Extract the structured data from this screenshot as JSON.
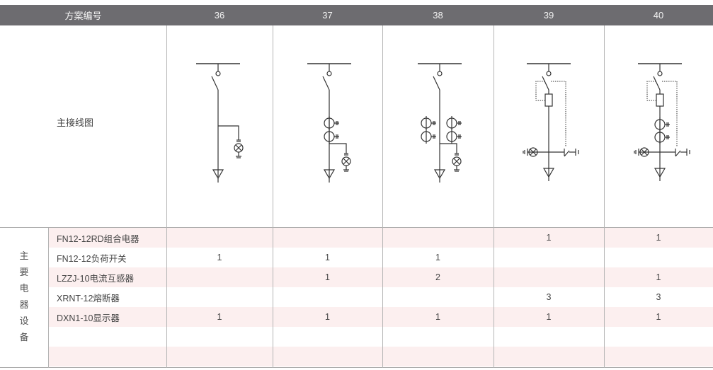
{
  "header": {
    "label": "方案编号",
    "schemes": [
      "36",
      "37",
      "38",
      "39",
      "40"
    ]
  },
  "diagram_row_label": "主接线图",
  "equipment_group_label": "主要电器设备",
  "equipment": [
    {
      "name": "FN12-12RD组合电器",
      "values": [
        "",
        "",
        "",
        "1",
        "1"
      ]
    },
    {
      "name": "FN12-12负荷开关",
      "values": [
        "1",
        "1",
        "1",
        "",
        ""
      ]
    },
    {
      "name": "LZZJ-10电流互感器",
      "values": [
        "",
        "1",
        "2",
        "",
        "1"
      ]
    },
    {
      "name": "XRNT-12熔断器",
      "values": [
        "",
        "",
        "",
        "3",
        "3"
      ]
    },
    {
      "name": "DXN1-10显示器",
      "values": [
        "1",
        "1",
        "1",
        "1",
        "1"
      ]
    },
    {
      "name": "",
      "values": [
        "",
        "",
        "",
        "",
        ""
      ]
    },
    {
      "name": "",
      "values": [
        "",
        "",
        "",
        "",
        ""
      ]
    }
  ],
  "colors": {
    "header_bg": "#6d6c70",
    "stripe": "#fcefef",
    "line": "#333333"
  }
}
